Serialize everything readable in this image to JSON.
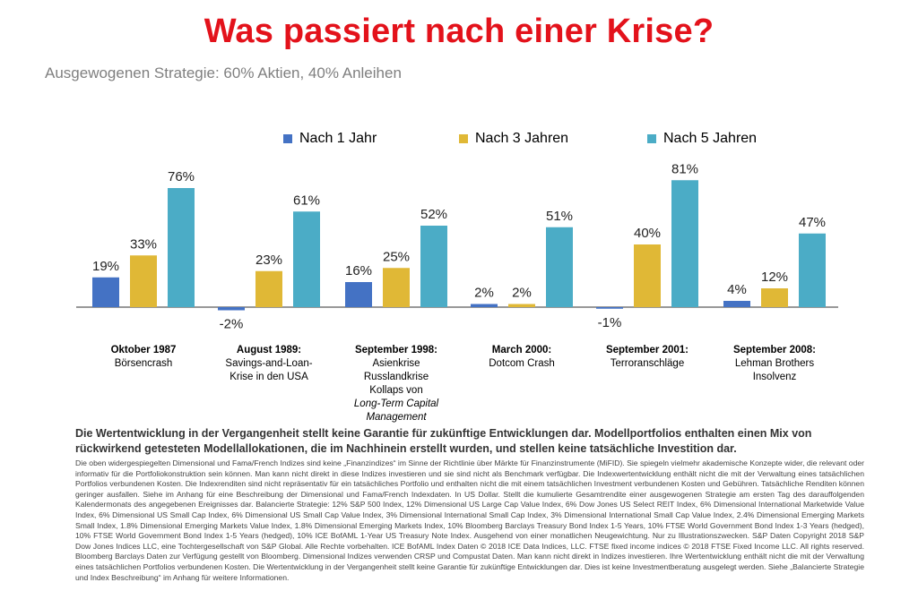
{
  "title": "Was passiert nach einer Krise?",
  "subtitle": "Ausgewogenen Strategie: 60% Aktien, 40% Anleihen",
  "colors": {
    "title": "#e3121b",
    "series1": "#4472c4",
    "series2": "#e0b836",
    "series3": "#4bacc6"
  },
  "chart_data": {
    "type": "bar",
    "categories": [
      "Oktober 1987",
      "August 1989:",
      "September 1998:",
      "March 2000:",
      "September 2001:",
      "September 2008:"
    ],
    "series": [
      {
        "name": "Nach 1 Jahr",
        "values": [
          19,
          -2,
          16,
          2,
          -1,
          4
        ],
        "labels": [
          "19%",
          "-2%",
          "16%",
          "2%",
          "-1%",
          "4%"
        ]
      },
      {
        "name": "Nach 3 Jahren",
        "values": [
          33,
          23,
          25,
          2,
          40,
          12
        ],
        "labels": [
          "33%",
          "23%",
          "25%",
          "2%",
          "40%",
          "12%"
        ]
      },
      {
        "name": "Nach 5 Jahren",
        "values": [
          76,
          61,
          52,
          51,
          81,
          47
        ],
        "labels": [
          "76%",
          "61%",
          "52%",
          "51%",
          "81%",
          "47%"
        ]
      }
    ],
    "legend": "top",
    "grid": false
  },
  "groups": [
    {
      "title": "Oktober 1987",
      "desc": "Börsencrash",
      "extra": ""
    },
    {
      "title": "August 1989:",
      "desc": "Savings-and-Loan-\nKrise in den USA",
      "extra": ""
    },
    {
      "title": "September 1998:",
      "desc": "Asienkrise\nRusslandkrise\nKollaps von",
      "extra": "Long-Term Capital Management"
    },
    {
      "title": "March 2000:",
      "desc": "Dotcom Crash",
      "extra": ""
    },
    {
      "title": "September 2001:",
      "desc": "Terroranschläge",
      "extra": ""
    },
    {
      "title": "September 2008:",
      "desc": "Lehman Brothers\nInsolvenz",
      "extra": ""
    }
  ],
  "disclaimer_main": "Die Wertentwicklung in der Vergangenheit stellt keine Garantie für zukünftige Entwicklungen dar. Modellportfolios enthalten einen Mix von rückwirkend getesteten Modellallokationen, die im Nachhinein erstellt wurden, und stellen keine tatsächliche Investition dar.",
  "disclaimer_small": "Die oben widergespiegelten Dimensional und Fama/French Indizes sind keine „Finanzindizes“ im Sinne der Richtlinie über Märkte für Finanzinstrumente (MiFID). Sie spiegeln vielmehr akademische Konzepte wider, die relevant oder informativ für die Portfoliokonstruktion sein können. Man kann nicht direkt in diese Indizes investieren und sie sind nicht als Benchmark verfügbar. Die Indexwertentwicklung enthält nicht die mit der Verwaltung eines tatsächlichen Portfolios verbundenen Kosten. Die Indexrenditen sind nicht repräsentativ für ein tatsächliches Portfolio und enthalten nicht die mit einem tatsächlichen Investment verbundenen Kosten und Gebühren. Tatsächliche Renditen können geringer ausfallen. Siehe im Anhang für eine Beschreibung der Dimensional und Fama/French Indexdaten. In US Dollar. Stellt die kumulierte Gesamtrendite einer ausgewogenen Strategie am ersten Tag des darauffolgenden Kalendermonats des angegebenen Ereignisses dar. Balancierte Strategie: 12% S&P 500 Index, 12% Dimensional US Large Cap Value Index, 6% Dow Jones US Select REIT Index, 6% Dimensional International Marketwide Value Index, 6% Dimensional US Small Cap Index, 6% Dimensional US Small Cap Value Index, 3% Dimensional International Small Cap Index, 3% Dimensional International Small Cap Value Index, 2.4% Dimensional Emerging Markets Small Index, 1.8% Dimensional Emerging Markets Value Index, 1.8% Dimensional Emerging Markets Index, 10% Bloomberg Barclays Treasury Bond Index 1-5 Years, 10% FTSE World Government Bond Index 1-3 Years (hedged), 10% FTSE World Government Bond Index 1-5 Years (hedged), 10% ICE BofAML 1-Year US Treasury Note Index. Ausgehend von einer monatlichen Neugewichtung. Nur zu Illustrationszwecken. S&P Daten Copyright 2018 S&P Dow Jones Indices LLC, eine Tochtergesellschaft von S&P Global. Alle Rechte vorbehalten. ICE BofAML Index Daten © 2018 ICE Data Indices, LLC. FTSE fixed income indices © 2018 FTSE Fixed Income LLC. All rights reserved. Bloomberg Barclays Daten zur Verfügung gestellt von Bloomberg. Dimensional Indizes verwenden CRSP und Compustat Daten. Man kann nicht direkt in Indizes investieren. Ihre Wertentwicklung enthält nicht die mit der Verwaltung eines tatsächlichen Portfolios verbundenen Kosten. Die Wertentwicklung in der Vergangenheit stellt keine Garantie für zukünftige Entwicklungen dar. Dies ist keine Investmentberatung ausgelegt werden. Siehe „Balancierte Strategie und Index Beschreibung“ im Anhang für weitere Informationen."
}
